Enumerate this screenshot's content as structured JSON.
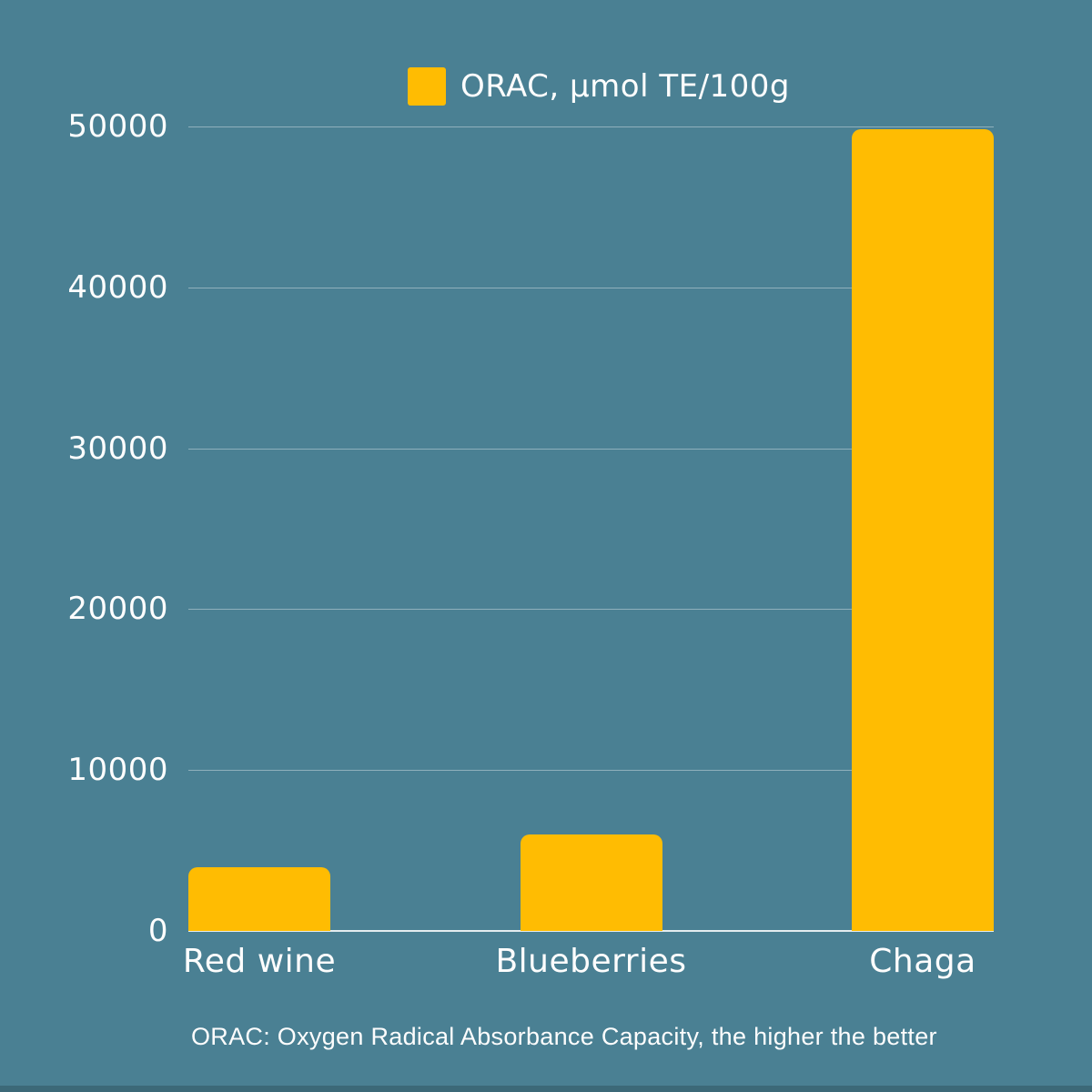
{
  "colors": {
    "background": "#4A8093",
    "bar": "#FFBC02",
    "grid_line": "#8FB0BC",
    "axis_line": "#E4ECEF",
    "text": "#FDFDFD"
  },
  "legend": {
    "label": "ORAC, µmol TE/100g",
    "swatch_color": "#FFBC02"
  },
  "footer": {
    "note": "ORAC: Oxygen Radical Absorbance Capacity, the higher the better"
  },
  "chart_data": {
    "type": "bar",
    "title": "",
    "categories": [
      "Red wine",
      "Blueberries",
      "Chaga"
    ],
    "values": [
      3950,
      6000,
      49850
    ],
    "series_label": "ORAC, µmol TE/100g",
    "xlabel": "",
    "ylabel": "",
    "ylim": [
      0,
      50000
    ],
    "yticks": [
      0,
      10000,
      20000,
      30000,
      40000,
      50000
    ],
    "grid": "horizontal gridlines on",
    "legend_position": "top-center",
    "annotation": "ORAC: Oxygen Radical Absorbance Capacity, the higher the better"
  }
}
